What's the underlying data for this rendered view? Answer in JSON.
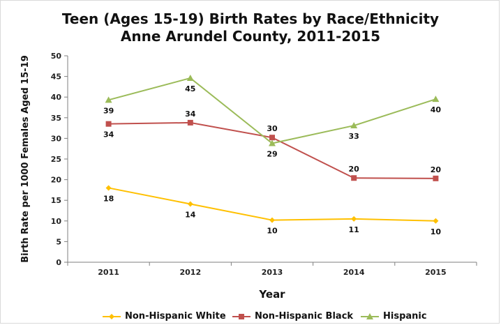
{
  "chart_data": {
    "type": "line",
    "title": "Teen (Ages 15-19) Birth Rates by Race/Ethnicity",
    "subtitle": "Anne Arundel County, 2011-2015",
    "xlabel": "Year",
    "ylabel": "Birth Rate per 1000 Females Aged 15-19",
    "categories": [
      "2011",
      "2012",
      "2013",
      "2014",
      "2015"
    ],
    "ylim": [
      0,
      50
    ],
    "yticks": [
      0,
      5,
      10,
      15,
      20,
      25,
      30,
      35,
      40,
      45,
      50
    ],
    "grid": false,
    "legend_position": "bottom",
    "series": [
      {
        "name": "Non-Hispanic White",
        "color": "#FFC000",
        "marker": "diamond",
        "values": [
          18.0,
          14.1,
          10.2,
          10.5,
          10.0
        ],
        "labels": [
          "18",
          "14",
          "10",
          "11",
          "10"
        ]
      },
      {
        "name": "Non-Hispanic Black",
        "color": "#C0504D",
        "marker": "square",
        "values": [
          33.5,
          33.8,
          30.2,
          20.4,
          20.3
        ],
        "labels": [
          "34",
          "34",
          "30",
          "20",
          "20"
        ]
      },
      {
        "name": "Hispanic",
        "color": "#9BBB59",
        "marker": "triangle",
        "values": [
          39.3,
          44.6,
          28.8,
          33.1,
          39.5
        ],
        "labels": [
          "39",
          "45",
          "29",
          "33",
          "40"
        ]
      }
    ]
  }
}
